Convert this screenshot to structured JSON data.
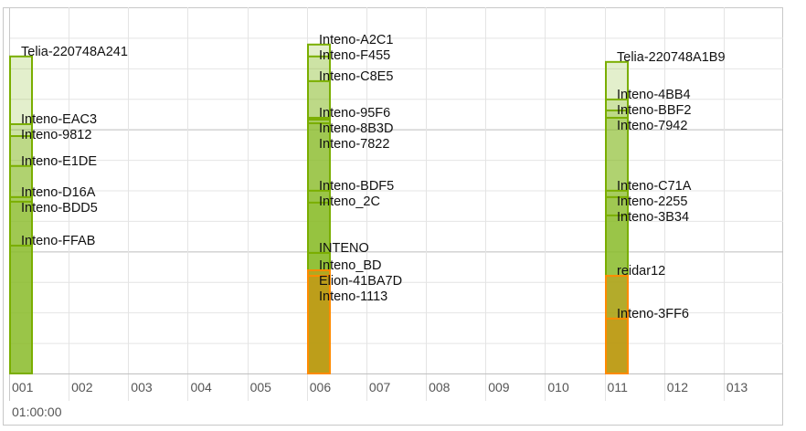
{
  "chart_data": {
    "type": "bar",
    "stacking": "overlapping",
    "categories": [
      "001",
      "002",
      "003",
      "004",
      "005",
      "006",
      "007",
      "008",
      "009",
      "010",
      "011",
      "012",
      "013"
    ],
    "time_label": "01:00:00",
    "ylim": [
      0,
      12
    ],
    "grid": true,
    "colors": {
      "green": "#7aae00",
      "orange": "#ff8a00"
    },
    "series": [
      {
        "name": "Telia-220748A241",
        "channel": "001",
        "value": 10.39,
        "color": "green"
      },
      {
        "name": "Inteno-EAC3",
        "channel": "001",
        "value": 8.17,
        "color": "green"
      },
      {
        "name": "Inteno-9812",
        "channel": "001",
        "value": 7.78,
        "color": "green"
      },
      {
        "name": "Inteno-E1DE",
        "channel": "001",
        "value": 6.8,
        "color": "green"
      },
      {
        "name": "Inteno-D16A",
        "channel": "001",
        "value": 5.78,
        "color": "green"
      },
      {
        "name": "Inteno-BDD5",
        "channel": "001",
        "value": 5.63,
        "color": "green"
      },
      {
        "name": "Inteno-FFAB",
        "channel": "001",
        "value": 4.19,
        "color": "green"
      },
      {
        "name": "Inteno-A2C1",
        "channel": "006",
        "value": 10.78,
        "color": "green"
      },
      {
        "name": "Inteno-F455",
        "channel": "006",
        "value": 10.39,
        "color": "green"
      },
      {
        "name": "Inteno-C8E5",
        "channel": "006",
        "value": 9.58,
        "color": "green"
      },
      {
        "name": "Inteno-95F6",
        "channel": "006",
        "value": 8.38,
        "color": "green"
      },
      {
        "name": "Inteno-8B3D",
        "channel": "006",
        "value": 8.32,
        "color": "green"
      },
      {
        "name": "Inteno-7822",
        "channel": "006",
        "value": 8.2,
        "color": "green"
      },
      {
        "name": "Inteno-BDF5",
        "channel": "006",
        "value": 5.99,
        "color": "green"
      },
      {
        "name": "Inteno_2C",
        "channel": "006",
        "value": 5.6,
        "color": "green"
      },
      {
        "name": "INTENO",
        "channel": "006",
        "value": 3.95,
        "color": "green"
      },
      {
        "name": "Inteno_BD",
        "channel": "006",
        "value": 3.38,
        "color": "green"
      },
      {
        "name": "Elion-41BA7D",
        "channel": "006",
        "value": 3.38,
        "color": "orange"
      },
      {
        "name": "Inteno-1113",
        "channel": "006",
        "value": 3.2,
        "color": "orange"
      },
      {
        "name": "Telia-220748A1B9",
        "channel": "011",
        "value": 10.21,
        "color": "green"
      },
      {
        "name": "Inteno-4BB4",
        "channel": "011",
        "value": 8.98,
        "color": "green"
      },
      {
        "name": "Inteno-BBF2",
        "channel": "011",
        "value": 8.62,
        "color": "green"
      },
      {
        "name": "Inteno-7942",
        "channel": "011",
        "value": 8.38,
        "color": "green"
      },
      {
        "name": "Inteno-C71A",
        "channel": "011",
        "value": 5.99,
        "color": "green"
      },
      {
        "name": "Inteno-2255",
        "channel": "011",
        "value": 5.78,
        "color": "green"
      },
      {
        "name": "Inteno-3B34",
        "channel": "011",
        "value": 5.18,
        "color": "green"
      },
      {
        "name": "reidar12",
        "channel": "011",
        "value": 3.2,
        "color": "orange"
      },
      {
        "name": "Inteno-3FF6",
        "channel": "011",
        "value": 1.8,
        "color": "orange"
      }
    ]
  }
}
